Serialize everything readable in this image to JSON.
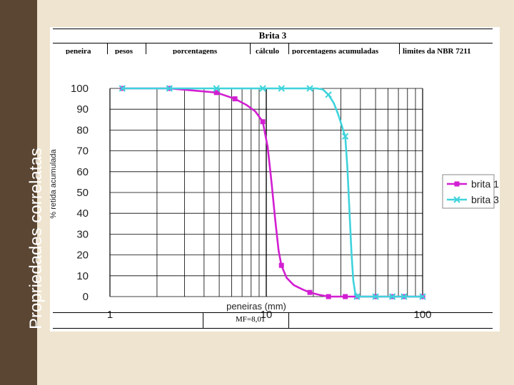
{
  "slide": {
    "title": "Propriedades correlatas"
  },
  "table": {
    "title": "Brita 3",
    "columns": [
      "peneira",
      "pesos",
      "porcentagens",
      "cálculo",
      "porcentagens acumuladas",
      "limites da NBR 7211"
    ],
    "footer_mf": "MF=8,01"
  },
  "colors": {
    "brita1": "#d21ed2",
    "brita3": "#3fd3dc",
    "sidebar": "#5a4632",
    "background": "#efe4cf"
  },
  "chart_data": {
    "type": "line",
    "xscale": "log",
    "xlim": [
      1,
      100
    ],
    "ylim": [
      0,
      100
    ],
    "xticks": [
      "1",
      "10",
      "100"
    ],
    "yticks": [
      "0",
      "10",
      "20",
      "30",
      "40",
      "50",
      "60",
      "70",
      "80",
      "90",
      "100"
    ],
    "xlabel": "peneiras (mm)",
    "ylabel": "% retida acumulada",
    "grid": true,
    "legend": "right",
    "series": [
      {
        "name": "brita 1",
        "x": [
          1.2,
          2.4,
          4.8,
          6.3,
          9.5,
          12.5,
          19,
          25,
          32,
          38,
          50,
          64,
          76,
          100
        ],
        "y": [
          100,
          100,
          98,
          95,
          84,
          15,
          2,
          0,
          0,
          0,
          0,
          0,
          0,
          0
        ],
        "curve_x": [
          1.2,
          2.4,
          4.8,
          6.3,
          7.5,
          8.5,
          9.5,
          10.2,
          10.8,
          11.4,
          12,
          12.5,
          13.5,
          15,
          17,
          19,
          22,
          25,
          32,
          38,
          50,
          64,
          76,
          100
        ],
        "curve_y": [
          100,
          100,
          98,
          95,
          92,
          89,
          84,
          72,
          55,
          37,
          22,
          15,
          9,
          5.5,
          3.5,
          2,
          0.8,
          0,
          0,
          0,
          0,
          0,
          0,
          0
        ]
      },
      {
        "name": "brita 3",
        "x": [
          1.2,
          2.4,
          4.8,
          9.5,
          12.5,
          19,
          25,
          32,
          38,
          50,
          64,
          76,
          100
        ],
        "y": [
          100,
          100,
          100,
          100,
          100,
          100,
          97,
          77,
          0,
          0,
          0,
          0,
          0
        ],
        "curve_x": [
          1.2,
          2.4,
          4.8,
          9.5,
          12.5,
          19,
          21,
          23,
          25,
          27,
          29,
          31,
          32,
          33,
          34,
          35,
          36,
          37,
          38,
          40,
          45,
          50,
          64,
          76,
          100
        ],
        "curve_y": [
          100,
          100,
          100,
          100,
          100,
          100,
          100,
          99.5,
          97,
          93,
          87,
          80,
          77,
          62,
          42,
          22,
          8,
          2,
          0.5,
          0,
          0,
          0,
          0,
          0,
          0
        ]
      }
    ]
  }
}
